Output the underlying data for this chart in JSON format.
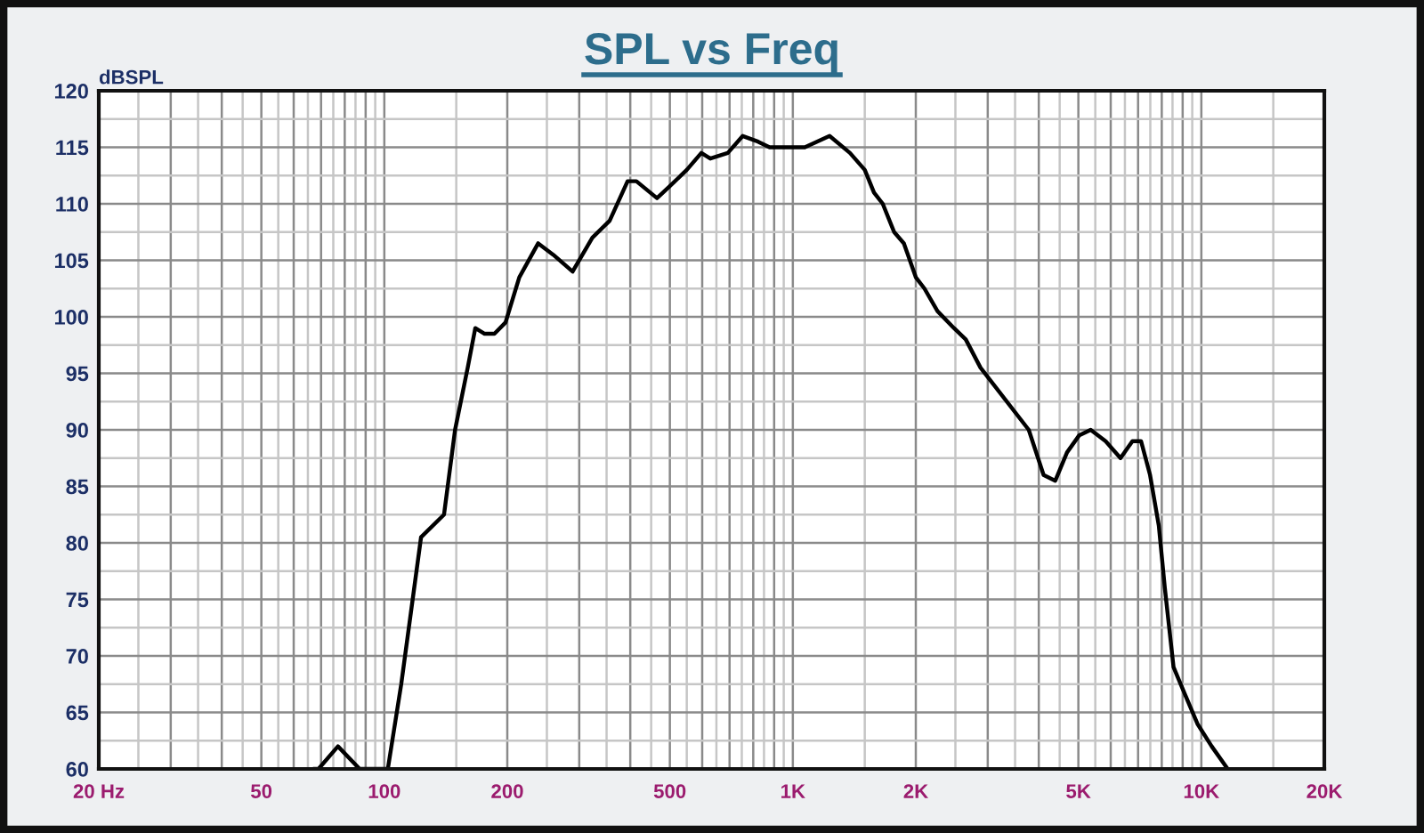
{
  "chart_data": {
    "type": "line",
    "title": "SPL vs Freq",
    "ylabel": "dBSPL",
    "x": [
      67,
      69,
      77,
      87,
      102,
      110,
      123,
      140,
      149,
      160,
      167,
      176,
      186,
      198,
      214,
      238,
      259,
      289,
      323,
      356,
      394,
      414,
      465,
      498,
      550,
      597,
      628,
      693,
      754,
      822,
      877,
      971,
      1020,
      1070,
      1230,
      1380,
      1500,
      1580,
      1660,
      1770,
      1870,
      2000,
      2100,
      2260,
      2480,
      2650,
      2880,
      3780,
      4110,
      4390,
      4690,
      5020,
      5360,
      5830,
      6340,
      6780,
      7120,
      7490,
      7870,
      8140,
      8550,
      9140,
      9780,
      10600,
      11600
    ],
    "series": [
      {
        "color": "#000000",
        "values": [
          60,
          60,
          62,
          60,
          60,
          67.5,
          80.5,
          82.5,
          90,
          95.5,
          99,
          98.5,
          98.5,
          99.5,
          103.5,
          106.5,
          105.5,
          104,
          107,
          108.5,
          112,
          112,
          110.5,
          111.5,
          113,
          114.5,
          114,
          114.5,
          116,
          115.5,
          115,
          115,
          115,
          115,
          116,
          114.5,
          113,
          111,
          110,
          107.5,
          106.5,
          103.5,
          102.5,
          100.5,
          99,
          98,
          95.5,
          90,
          86,
          85.5,
          88,
          89.5,
          90,
          89,
          87.5,
          89,
          89,
          86,
          81.5,
          76,
          69,
          66.5,
          64,
          62,
          60
        ]
      }
    ],
    "log": "x",
    "xlim": [
      20,
      20000
    ],
    "ylim": [
      60,
      120
    ],
    "xticks": [
      {
        "value": 20,
        "label": "20 Hz"
      },
      {
        "value": 25,
        "label": null
      },
      {
        "value": 30,
        "label": null
      },
      {
        "value": 35,
        "label": null
      },
      {
        "value": 40,
        "label": null
      },
      {
        "value": 45,
        "label": null
      },
      50,
      {
        "value": 55,
        "label": null
      },
      {
        "value": 60,
        "label": null
      },
      {
        "value": 65,
        "label": null
      },
      {
        "value": 70,
        "label": null
      },
      {
        "value": 75,
        "label": null
      },
      {
        "value": 80,
        "label": null
      },
      {
        "value": 85,
        "label": null
      },
      {
        "value": 90,
        "label": null
      },
      {
        "value": 95,
        "label": null
      },
      100,
      {
        "value": 150,
        "label": null
      },
      200,
      {
        "value": 250,
        "label": null
      },
      {
        "value": 300,
        "label": null
      },
      {
        "value": 350,
        "label": null
      },
      {
        "value": 400,
        "label": null
      },
      {
        "value": 450,
        "label": null
      },
      500,
      {
        "value": 550,
        "label": null
      },
      {
        "value": 600,
        "label": null
      },
      {
        "value": 650,
        "label": null
      },
      {
        "value": 700,
        "label": null
      },
      {
        "value": 750,
        "label": null
      },
      {
        "value": 800,
        "label": null
      },
      {
        "value": 850,
        "label": null
      },
      {
        "value": 900,
        "label": null
      },
      {
        "value": 950,
        "label": null
      },
      {
        "value": 1000,
        "label": "1K"
      },
      {
        "value": 1500,
        "label": null
      },
      {
        "value": 2000,
        "label": "2K"
      },
      {
        "value": 2500,
        "label": null
      },
      {
        "value": 3000,
        "label": null
      },
      {
        "value": 3500,
        "label": null
      },
      {
        "value": 4000,
        "label": null
      },
      {
        "value": 4500,
        "label": null
      },
      {
        "value": 5000,
        "label": "5K"
      },
      {
        "value": 5500,
        "label": null
      },
      {
        "value": 6000,
        "label": null
      },
      {
        "value": 6500,
        "label": null
      },
      {
        "value": 7000,
        "label": null
      },
      {
        "value": 7500,
        "label": null
      },
      {
        "value": 8000,
        "label": null
      },
      {
        "value": 8500,
        "label": null
      },
      {
        "value": 9000,
        "label": null
      },
      {
        "value": 9500,
        "label": null
      },
      {
        "value": 10000,
        "label": "10K"
      },
      {
        "value": 15000,
        "label": null
      },
      {
        "value": 20000,
        "label": "20K"
      }
    ],
    "yticks": [
      60,
      {
        "value": 62.5,
        "label": null
      },
      65,
      {
        "value": 67.5,
        "label": null
      },
      70,
      {
        "value": 72.5,
        "label": null
      },
      75,
      {
        "value": 77.5,
        "label": null
      },
      80,
      {
        "value": 82.5,
        "label": null
      },
      85,
      {
        "value": 87.5,
        "label": null
      },
      90,
      {
        "value": 92.5,
        "label": null
      },
      95,
      {
        "value": 97.5,
        "label": null
      },
      100,
      {
        "value": 102.5,
        "label": null
      },
      105,
      {
        "value": 107.5,
        "label": null
      },
      110,
      {
        "value": 112.5,
        "label": null
      },
      115,
      {
        "value": 117.5,
        "label": null
      },
      120
    ],
    "grid": true
  }
}
